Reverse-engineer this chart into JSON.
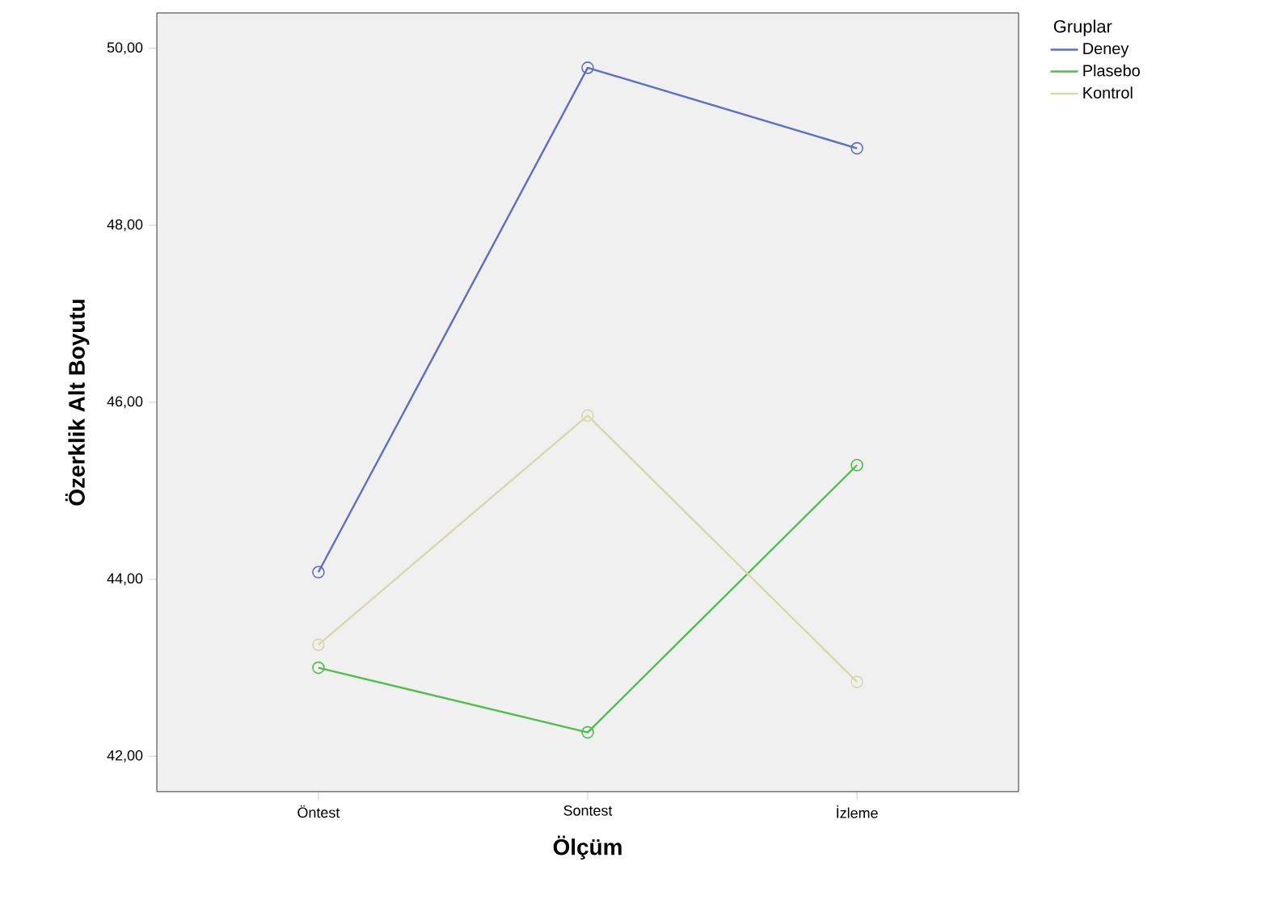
{
  "chart_data": {
    "type": "line",
    "xlabel": "Ölçüm",
    "ylabel": "Özerklik Alt Boyutu",
    "legend_title": "Gruplar",
    "categories": [
      "Öntest",
      "Sontest",
      "İzleme"
    ],
    "series": [
      {
        "name": "Deney",
        "color": "#5b6fc4",
        "values": [
          44.08,
          49.78,
          48.87
        ]
      },
      {
        "name": "Plasebo",
        "color": "#4cbf4c",
        "values": [
          43.0,
          42.27,
          45.29
        ]
      },
      {
        "name": "Kontrol",
        "color": "#d8d8a8",
        "values": [
          43.26,
          45.85,
          42.84
        ]
      }
    ],
    "ylim": [
      41.6,
      50.4
    ],
    "yticks": [
      {
        "value": 42,
        "label": "42,00"
      },
      {
        "value": 44,
        "label": "44,00"
      },
      {
        "value": 46,
        "label": "46,00"
      },
      {
        "value": 48,
        "label": "48,00"
      },
      {
        "value": 50,
        "label": "50,00"
      }
    ],
    "legend": "right",
    "marker": "circle",
    "line_style": "solid"
  }
}
